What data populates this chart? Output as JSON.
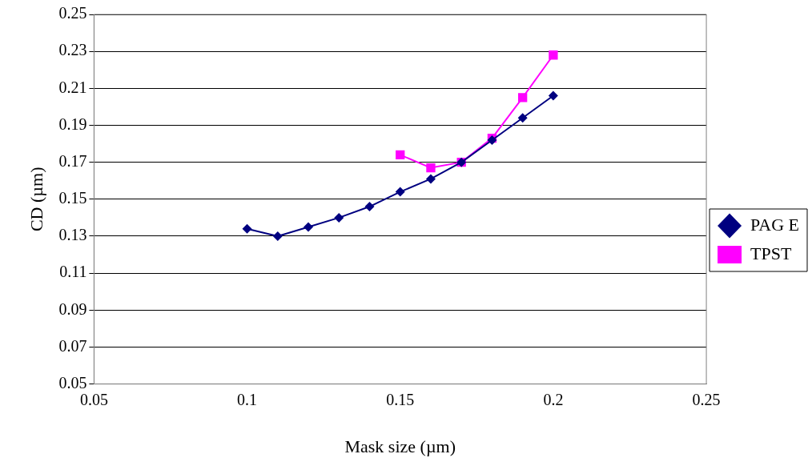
{
  "chart_data": {
    "type": "line",
    "xlabel": "Mask size (µm)",
    "ylabel": "CD (µm)",
    "xlim": [
      0.05,
      0.25
    ],
    "xticks": [
      0.05,
      0.1,
      0.15,
      0.2,
      0.25
    ],
    "ylim": [
      0.05,
      0.25
    ],
    "yticks": [
      0.05,
      0.07,
      0.09,
      0.11,
      0.13,
      0.15,
      0.17,
      0.19,
      0.21,
      0.23,
      0.25
    ],
    "grid": "y",
    "legend": "right",
    "line_style": "solid",
    "series": [
      {
        "name": "TPST",
        "color": "#ff00ff",
        "marker": "square",
        "x": [
          0.15,
          0.16,
          0.17,
          0.18,
          0.19,
          0.2
        ],
        "values": [
          0.174,
          0.167,
          0.17,
          0.183,
          0.205,
          0.228
        ]
      },
      {
        "name": "PAG E",
        "color": "#000080",
        "marker": "diamond",
        "x": [
          0.1,
          0.11,
          0.12,
          0.13,
          0.14,
          0.15,
          0.16,
          0.17,
          0.18,
          0.19,
          0.2
        ],
        "values": [
          0.134,
          0.13,
          0.135,
          0.14,
          0.146,
          0.154,
          0.161,
          0.17,
          0.182,
          0.194,
          0.206
        ]
      }
    ]
  }
}
